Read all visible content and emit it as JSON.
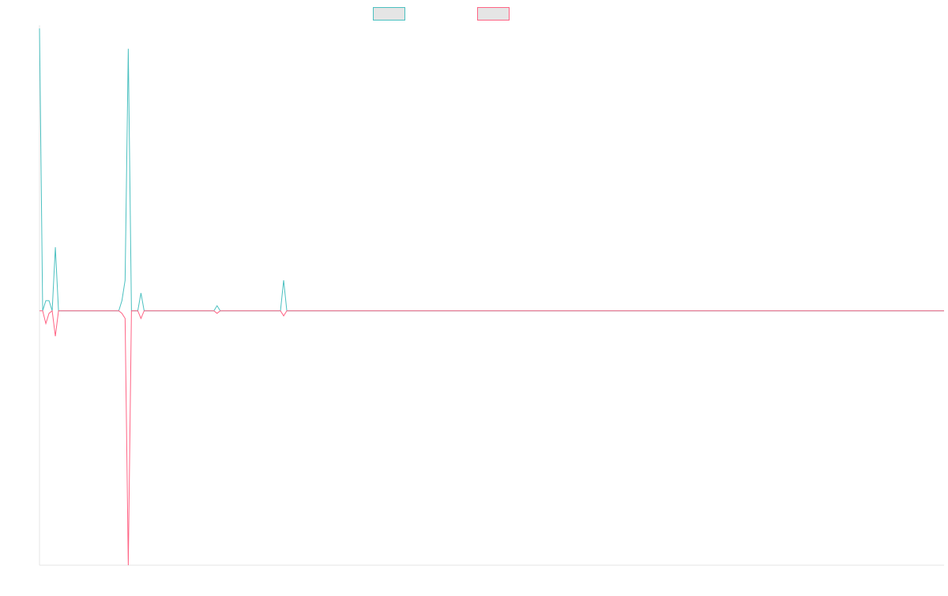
{
  "chart_data": {
    "type": "line",
    "title": "",
    "xlabel": "",
    "ylabel": "",
    "grid": false,
    "legend": "top-center",
    "x": [
      0,
      1,
      2,
      3,
      4,
      5,
      6,
      7,
      8,
      9,
      10,
      11,
      12,
      13,
      14,
      15,
      16,
      17,
      18,
      19,
      20,
      21,
      22,
      23,
      24,
      25,
      26,
      27,
      28,
      29,
      30,
      31,
      32,
      33,
      34,
      35,
      36,
      37,
      38,
      39,
      40,
      41,
      42,
      43,
      44,
      45,
      46,
      47,
      48,
      49,
      50,
      51,
      52,
      53,
      54,
      55,
      56,
      57,
      58,
      59,
      60,
      61,
      62,
      63,
      64,
      65,
      66,
      67,
      68,
      69,
      70,
      71,
      72,
      73,
      74,
      75,
      76,
      77,
      78,
      79
    ],
    "ylim": [
      -100,
      111
    ],
    "series": [
      {
        "name": "",
        "color": "#4bc0c0",
        "fill": "#e5e5e5",
        "values": [
          111,
          0,
          4,
          4,
          0,
          25,
          0,
          0,
          0,
          0,
          0,
          0,
          0,
          0,
          0,
          0,
          0,
          0,
          0,
          0,
          0,
          0,
          0,
          0,
          0,
          0,
          4,
          12,
          103,
          0,
          0,
          0,
          7,
          0,
          0,
          0,
          0,
          0,
          0,
          0,
          0,
          0,
          0,
          0,
          0,
          0,
          0,
          0,
          0,
          0,
          0,
          0,
          0,
          0,
          0,
          0,
          2,
          0,
          0,
          0,
          0,
          0,
          0,
          0,
          0,
          0,
          0,
          0,
          0,
          0,
          0,
          0,
          0,
          0,
          0,
          0,
          0,
          12,
          0,
          0
        ]
      },
      {
        "name": "",
        "color": "#ff6384",
        "fill": "#e5e5e5",
        "values": [
          0,
          0,
          -5,
          -1,
          0,
          -10,
          0,
          0,
          0,
          0,
          0,
          0,
          0,
          0,
          0,
          0,
          0,
          0,
          0,
          0,
          0,
          0,
          0,
          0,
          0,
          0,
          -1,
          -3,
          -100,
          0,
          0,
          0,
          -3,
          0,
          0,
          0,
          0,
          0,
          0,
          0,
          0,
          0,
          0,
          0,
          0,
          0,
          0,
          0,
          0,
          0,
          0,
          0,
          0,
          0,
          0,
          0,
          -1,
          0,
          0,
          0,
          0,
          0,
          0,
          0,
          0,
          0,
          0,
          0,
          0,
          0,
          0,
          0,
          0,
          0,
          0,
          0,
          0,
          -2,
          0,
          0
        ]
      }
    ]
  }
}
